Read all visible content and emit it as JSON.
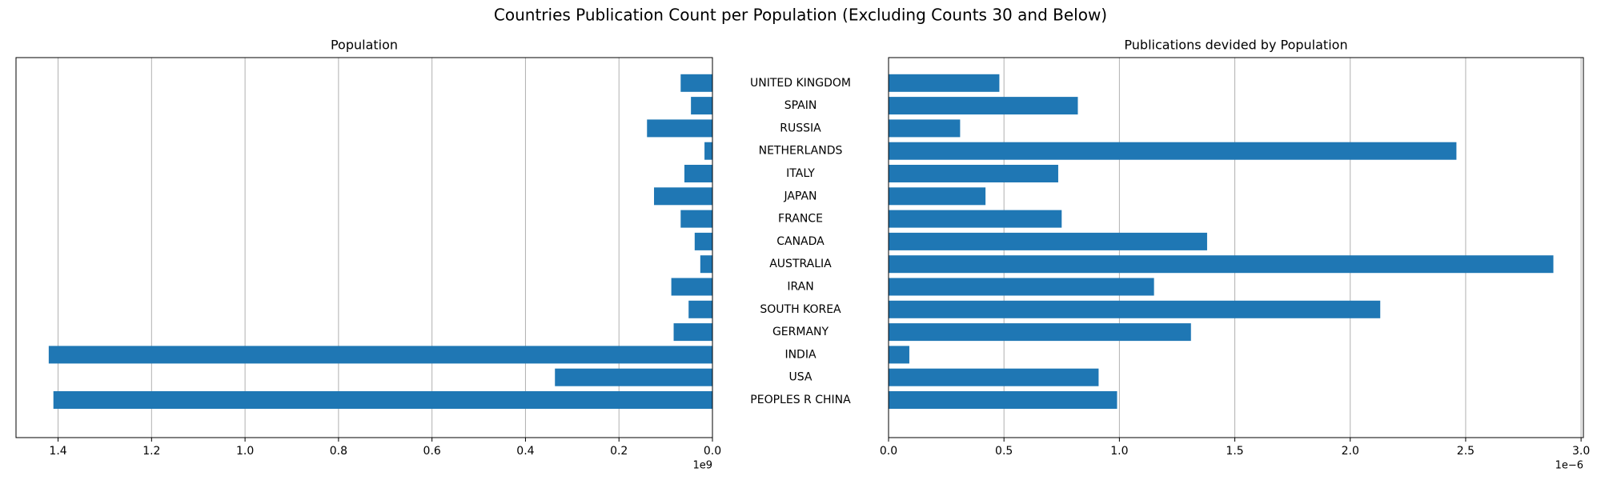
{
  "title": "Countries Publication Count per Population (Excluding Counts 30 and Below)",
  "chart_data": [
    {
      "type": "barh",
      "title": "Population",
      "color": "#1f77b4",
      "grid": true,
      "x_inverted": true,
      "offset_label": "1e9",
      "values": [
        1.41,
        0.337,
        1.42,
        0.083,
        0.051,
        0.088,
        0.026,
        0.038,
        0.068,
        0.125,
        0.06,
        0.017,
        0.14,
        0.046,
        0.068
      ],
      "xlim": [
        1.49,
        0
      ],
      "xticks": [
        1.4,
        1.2,
        {
          "value": 1,
          "label": "1.0"
        },
        0.8,
        0.6,
        0.4,
        0.2,
        {
          "value": 0,
          "label": "0.0"
        }
      ]
    },
    {
      "type": "barh",
      "title": "Publications devided by Population",
      "color": "#1f77b4",
      "grid": true,
      "offset_label": "1e−6",
      "categories": [
        "PEOPLES R CHINA",
        "USA",
        "INDIA",
        "GERMANY",
        "SOUTH KOREA",
        "IRAN",
        "AUSTRALIA",
        "CANADA",
        "FRANCE",
        "JAPAN",
        "ITALY",
        "NETHERLANDS",
        "RUSSIA",
        "SPAIN",
        "UNITED KINGDOM"
      ],
      "values": [
        0.99,
        0.91,
        0.09,
        1.31,
        2.13,
        1.15,
        2.88,
        1.38,
        0.75,
        0.42,
        0.735,
        2.46,
        0.31,
        0.82,
        0.48
      ],
      "xlim": [
        0,
        3.01
      ],
      "xticks": [
        {
          "value": 0,
          "label": "0.0"
        },
        0.5,
        {
          "value": 1,
          "label": "1.0"
        },
        1.5,
        {
          "value": 2,
          "label": "2.0"
        },
        2.5,
        {
          "value": 3,
          "label": "3.0"
        }
      ]
    }
  ]
}
